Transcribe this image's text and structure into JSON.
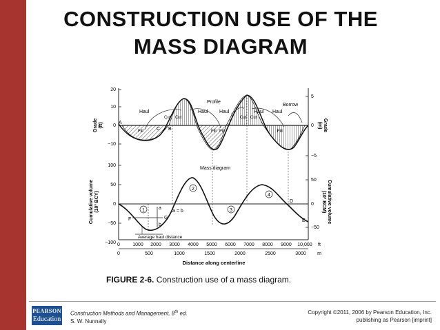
{
  "slide": {
    "title_line1": "CONSTRUCTION USE OF THE",
    "title_line2": "MASS DIAGRAM",
    "caption_label": "FIGURE 2-6.",
    "caption_text": " Construction use of a mass diagram.",
    "footer_left_line1": "Construction Methods and Management, 8",
    "footer_left_sup": "th",
    "footer_left_ed": " ed.",
    "footer_left_line2": "S. W. Nunnally",
    "footer_right_line1": "Copyright ©2011, 2006 by Pearson Education, Inc.",
    "footer_right_line2": "publishing as Pearson [imprint]",
    "logo_line1": "PEARSON",
    "logo_line2": "Education",
    "accent_color": "#a8342f",
    "logo_color": "#1d4f91"
  },
  "diagram": {
    "top_yaxis_label": "Grade\n(ft)",
    "top_yaxis_right_label": "Grade\n(m)",
    "top_ticks_left": [
      "20",
      "10",
      "0",
      "−10"
    ],
    "top_ticks_right": [
      "5",
      "0",
      "−5"
    ],
    "bottom_yaxis_label": "Cumulative volume\n(10³ BCY)",
    "bottom_yaxis_right_label": "Cumulative volume\n(10³ BCM)",
    "bottom_ticks_left": [
      "100",
      "50",
      "0",
      "−50",
      "−100"
    ],
    "bottom_ticks_right": [
      "50",
      "0",
      "−50"
    ],
    "x_ticks_ft": [
      "0",
      "1000",
      "2000",
      "3000",
      "4000",
      "5000",
      "6000",
      "7000",
      "8000",
      "9000",
      "10,000",
      "ft"
    ],
    "x_ticks_m": [
      "0",
      "500",
      "1000",
      "1500",
      "2000",
      "2500",
      "3000",
      "m"
    ],
    "x_label": "Distance along centerline",
    "profile_label": "Profile",
    "mass_label": "Mass diagram",
    "borrow_label": "Borrow",
    "haul_label": "Haul",
    "cut_label": "Cut",
    "fill_label": "Fill",
    "average_haul_label": "Average haul distance",
    "a_eq_b": "a = b",
    "point_letters": [
      "A",
      "B",
      "C",
      "D",
      "E",
      "F",
      "G"
    ],
    "point_a": "a",
    "point_b": "b",
    "circled_numbers": [
      "1",
      "2",
      "3",
      "4"
    ]
  }
}
